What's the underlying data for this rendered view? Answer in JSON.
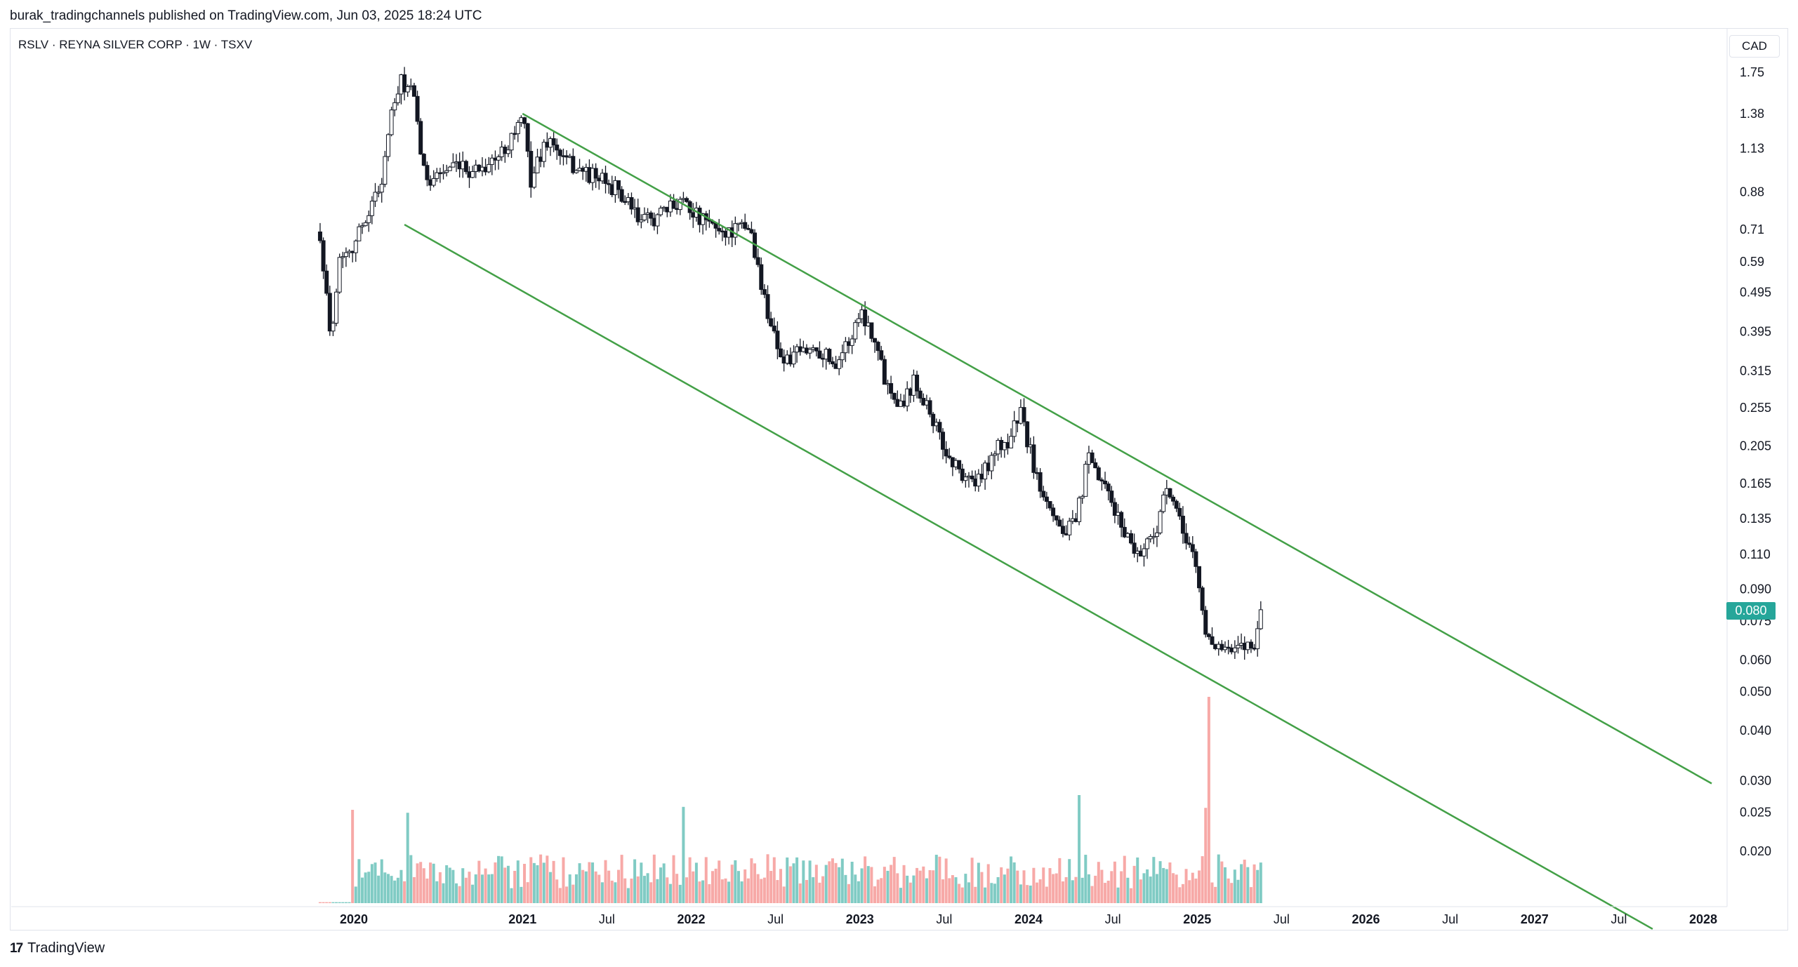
{
  "header": {
    "published": "burak_tradingchannels published on TradingView.com, Jun 03, 2025 18:24 UTC"
  },
  "symbol": {
    "title": "RSLV · REYNA SILVER CORP · 1W · TSXV"
  },
  "currency": "CAD",
  "last_price": "0.080",
  "footer": {
    "logo": "17",
    "brand": "TradingView"
  },
  "colors": {
    "up": "#26a69a",
    "down": "#ef5350",
    "volume_up": "#80cbc4",
    "volume_down": "#f7a9a7",
    "channel": "#43a047",
    "candle_body": "#131722"
  },
  "chart_data": {
    "type": "candlestick",
    "title": "RSLV · REYNA SILVER CORP · 1W · TSXV",
    "x_axis": {
      "ticks": [
        {
          "label": "2020",
          "year": 2020.0,
          "bold": true
        },
        {
          "label": "2021",
          "year": 2021.0,
          "bold": true
        },
        {
          "label": "Jul",
          "year": 2021.5,
          "bold": false
        },
        {
          "label": "2022",
          "year": 2022.0,
          "bold": true
        },
        {
          "label": "Jul",
          "year": 2022.5,
          "bold": false
        },
        {
          "label": "2023",
          "year": 2023.0,
          "bold": true
        },
        {
          "label": "Jul",
          "year": 2023.5,
          "bold": false
        },
        {
          "label": "2024",
          "year": 2024.0,
          "bold": true
        },
        {
          "label": "Jul",
          "year": 2024.5,
          "bold": false
        },
        {
          "label": "2025",
          "year": 2025.0,
          "bold": true
        },
        {
          "label": "Jul",
          "year": 2025.5,
          "bold": false
        },
        {
          "label": "2026",
          "year": 2026.0,
          "bold": true
        },
        {
          "label": "Jul",
          "year": 2026.5,
          "bold": false
        },
        {
          "label": "2027",
          "year": 2027.0,
          "bold": true
        },
        {
          "label": "Jul",
          "year": 2027.5,
          "bold": false
        },
        {
          "label": "2028",
          "year": 2028.0,
          "bold": true
        }
      ]
    },
    "y_axis": {
      "scale": "log",
      "ticks": [
        "1.75",
        "1.38",
        "1.13",
        "0.88",
        "0.71",
        "0.59",
        "0.495",
        "0.395",
        "0.315",
        "0.255",
        "0.205",
        "0.165",
        "0.135",
        "0.110",
        "0.090",
        "0.075",
        "0.060",
        "0.050",
        "0.040",
        "0.030",
        "0.025",
        "0.020"
      ]
    },
    "price_path": [
      [
        2019.8,
        0.7
      ],
      [
        2019.86,
        0.38
      ],
      [
        2019.92,
        0.62
      ],
      [
        2020.0,
        0.65
      ],
      [
        2020.08,
        0.78
      ],
      [
        2020.16,
        0.92
      ],
      [
        2020.22,
        1.35
      ],
      [
        2020.28,
        1.65
      ],
      [
        2020.35,
        1.55
      ],
      [
        2020.42,
        0.95
      ],
      [
        2020.55,
        1.0
      ],
      [
        2020.7,
        1.0
      ],
      [
        2020.85,
        1.06
      ],
      [
        2021.0,
        1.35
      ],
      [
        2021.05,
        0.95
      ],
      [
        2021.15,
        1.2
      ],
      [
        2021.25,
        1.05
      ],
      [
        2021.4,
        0.97
      ],
      [
        2021.55,
        0.9
      ],
      [
        2021.7,
        0.74
      ],
      [
        2021.85,
        0.78
      ],
      [
        2021.95,
        0.86
      ],
      [
        2022.05,
        0.75
      ],
      [
        2022.2,
        0.7
      ],
      [
        2022.35,
        0.72
      ],
      [
        2022.42,
        0.5
      ],
      [
        2022.5,
        0.38
      ],
      [
        2022.55,
        0.33
      ],
      [
        2022.65,
        0.35
      ],
      [
        2022.75,
        0.36
      ],
      [
        2022.85,
        0.33
      ],
      [
        2022.95,
        0.38
      ],
      [
        2023.0,
        0.45
      ],
      [
        2023.08,
        0.39
      ],
      [
        2023.15,
        0.3
      ],
      [
        2023.25,
        0.26
      ],
      [
        2023.32,
        0.3
      ],
      [
        2023.4,
        0.26
      ],
      [
        2023.5,
        0.2
      ],
      [
        2023.6,
        0.175
      ],
      [
        2023.7,
        0.165
      ],
      [
        2023.8,
        0.2
      ],
      [
        2023.88,
        0.21
      ],
      [
        2023.95,
        0.25
      ],
      [
        2024.05,
        0.17
      ],
      [
        2024.12,
        0.15
      ],
      [
        2024.2,
        0.125
      ],
      [
        2024.28,
        0.13
      ],
      [
        2024.35,
        0.19
      ],
      [
        2024.45,
        0.16
      ],
      [
        2024.55,
        0.13
      ],
      [
        2024.65,
        0.11
      ],
      [
        2024.75,
        0.125
      ],
      [
        2024.82,
        0.16
      ],
      [
        2024.9,
        0.13
      ],
      [
        2024.98,
        0.11
      ],
      [
        2025.05,
        0.07
      ],
      [
        2025.12,
        0.065
      ],
      [
        2025.2,
        0.062
      ],
      [
        2025.28,
        0.065
      ],
      [
        2025.35,
        0.067
      ],
      [
        2025.38,
        0.08
      ]
    ],
    "channel": {
      "upper": {
        "start": [
          2021.0,
          1.38
        ],
        "end": [
          2028.05,
          0.0295
        ]
      },
      "lower": {
        "start": [
          2020.3,
          0.73
        ],
        "end": [
          2027.7,
          0.0128
        ]
      }
    },
    "volume": {
      "notable_peaks": [
        {
          "year": 2020.0,
          "relative": 0.95
        },
        {
          "year": 2020.32,
          "relative": 0.92
        },
        {
          "year": 2021.95,
          "relative": 0.98
        },
        {
          "year": 2024.3,
          "relative": 1.1
        },
        {
          "year": 2025.07,
          "relative": 2.1
        },
        {
          "year": 2025.05,
          "relative": 0.97
        }
      ]
    },
    "grid": false
  }
}
